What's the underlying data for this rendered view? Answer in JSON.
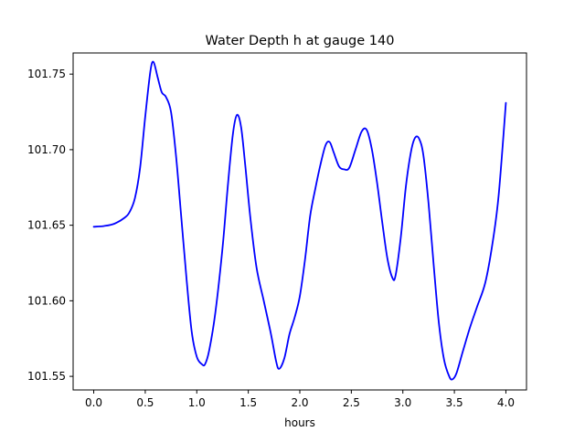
{
  "chart_data": {
    "type": "line",
    "title": "Water Depth h at gauge 140",
    "xlabel": "hours",
    "ylabel": "",
    "xlim": [
      -0.2,
      4.2
    ],
    "ylim": [
      101.541,
      101.764
    ],
    "xticks": [
      0.0,
      0.5,
      1.0,
      1.5,
      2.0,
      2.5,
      3.0,
      3.5,
      4.0
    ],
    "xtick_labels": [
      "0.0",
      "0.5",
      "1.0",
      "1.5",
      "2.0",
      "2.5",
      "3.0",
      "3.5",
      "4.0"
    ],
    "yticks": [
      101.55,
      101.6,
      101.65,
      101.7,
      101.75
    ],
    "ytick_labels": [
      "101.55",
      "101.60",
      "101.65",
      "101.70",
      "101.75"
    ],
    "grid": false,
    "series": [
      {
        "color": "#0000ff",
        "x": [
          0.0,
          0.1,
          0.2,
          0.3,
          0.35,
          0.4,
          0.45,
          0.5,
          0.55,
          0.58,
          0.62,
          0.66,
          0.7,
          0.75,
          0.8,
          0.85,
          0.9,
          0.95,
          1.0,
          1.05,
          1.08,
          1.12,
          1.18,
          1.25,
          1.3,
          1.35,
          1.39,
          1.43,
          1.47,
          1.52,
          1.58,
          1.65,
          1.72,
          1.77,
          1.8,
          1.85,
          1.9,
          1.95,
          2.0,
          2.05,
          2.1,
          2.15,
          2.2,
          2.25,
          2.29,
          2.33,
          2.38,
          2.43,
          2.48,
          2.54,
          2.6,
          2.65,
          2.7,
          2.75,
          2.8,
          2.85,
          2.9,
          2.93,
          2.98,
          3.03,
          3.08,
          3.12,
          3.16,
          3.2,
          3.25,
          3.3,
          3.35,
          3.4,
          3.45,
          3.48,
          3.52,
          3.58,
          3.65,
          3.72,
          3.8,
          3.87,
          3.93,
          4.0
        ],
        "y": [
          101.649,
          101.6495,
          101.651,
          101.655,
          101.659,
          101.668,
          101.688,
          101.722,
          101.752,
          101.758,
          101.748,
          101.738,
          101.735,
          101.725,
          101.695,
          101.655,
          101.615,
          101.58,
          101.563,
          101.558,
          101.558,
          101.567,
          101.592,
          101.635,
          101.675,
          101.71,
          101.723,
          101.715,
          101.69,
          101.655,
          101.622,
          101.6,
          101.578,
          101.56,
          101.555,
          101.562,
          101.578,
          101.589,
          101.603,
          101.627,
          101.656,
          101.674,
          101.69,
          101.703,
          101.705,
          101.698,
          101.689,
          101.687,
          101.688,
          101.7,
          101.712,
          101.713,
          101.7,
          101.678,
          101.652,
          101.628,
          101.615,
          101.617,
          101.642,
          101.676,
          101.699,
          101.708,
          101.707,
          101.696,
          101.664,
          101.623,
          101.585,
          101.561,
          101.55,
          101.548,
          101.552,
          101.566,
          101.582,
          101.596,
          101.612,
          101.638,
          101.67,
          101.731
        ]
      }
    ]
  }
}
